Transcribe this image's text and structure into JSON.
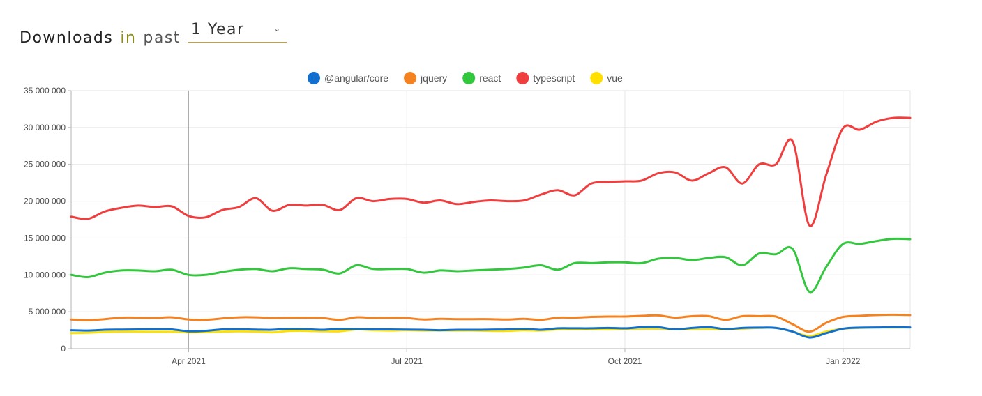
{
  "header": {
    "title": "Downloads",
    "in": "in",
    "past": "past",
    "period": "1 Year"
  },
  "chart_data": {
    "type": "line",
    "y_ticks": [
      "0",
      "5 000 000",
      "10 000 000",
      "15 000 000",
      "20 000 000",
      "25 000 000",
      "30 000 000",
      "35 000 000"
    ],
    "ylim": [
      0,
      35000000
    ],
    "x_tick_labels": [
      "Apr 2021",
      "Jul 2021",
      "Oct 2021",
      "Jan 2022"
    ],
    "x_tick_indices": [
      7,
      20,
      33,
      46
    ],
    "highlight_index": 7,
    "grid": true,
    "legend_position": "top-center",
    "series": [
      {
        "name": "@angular/core",
        "color": "#1170cf",
        "values": [
          2500000,
          2450000,
          2550000,
          2580000,
          2600000,
          2620000,
          2600000,
          2350000,
          2400000,
          2600000,
          2620000,
          2580000,
          2550000,
          2700000,
          2650000,
          2550000,
          2700000,
          2650000,
          2600000,
          2600000,
          2580000,
          2550000,
          2500000,
          2550000,
          2550000,
          2580000,
          2600000,
          2700000,
          2550000,
          2750000,
          2750000,
          2750000,
          2800000,
          2750000,
          2900000,
          2900000,
          2600000,
          2800000,
          2900000,
          2650000,
          2800000,
          2850000,
          2800000,
          2300000,
          1500000,
          2100000,
          2700000,
          2850000,
          2880000,
          2900000,
          2880000
        ]
      },
      {
        "name": "jquery",
        "color": "#f58220",
        "values": [
          3950000,
          3850000,
          4000000,
          4200000,
          4200000,
          4150000,
          4250000,
          3950000,
          3900000,
          4100000,
          4250000,
          4250000,
          4150000,
          4200000,
          4200000,
          4150000,
          3900000,
          4250000,
          4150000,
          4200000,
          4150000,
          3950000,
          4050000,
          4000000,
          4000000,
          4000000,
          3950000,
          4050000,
          3900000,
          4200000,
          4200000,
          4300000,
          4350000,
          4350000,
          4450000,
          4500000,
          4200000,
          4400000,
          4400000,
          3900000,
          4400000,
          4400000,
          4350000,
          3300000,
          2300000,
          3500000,
          4300000,
          4450000,
          4550000,
          4600000,
          4550000
        ]
      },
      {
        "name": "react",
        "color": "#33c73d",
        "values": [
          10000000,
          9700000,
          10300000,
          10600000,
          10600000,
          10500000,
          10700000,
          10000000,
          10000000,
          10400000,
          10700000,
          10800000,
          10500000,
          10900000,
          10800000,
          10700000,
          10200000,
          11300000,
          10800000,
          10800000,
          10800000,
          10300000,
          10600000,
          10500000,
          10600000,
          10700000,
          10800000,
          11000000,
          11300000,
          10700000,
          11600000,
          11600000,
          11700000,
          11700000,
          11600000,
          12200000,
          12300000,
          12000000,
          12300000,
          12400000,
          11300000,
          12900000,
          12800000,
          13500000,
          7700000,
          11100000,
          14200000,
          14200000,
          14600000,
          14900000,
          14850000
        ]
      },
      {
        "name": "typescript",
        "color": "#f03e3e",
        "values": [
          17900000,
          17600000,
          18600000,
          19100000,
          19400000,
          19200000,
          19300000,
          18000000,
          17800000,
          18800000,
          19200000,
          20400000,
          18700000,
          19500000,
          19400000,
          19500000,
          18800000,
          20400000,
          20000000,
          20300000,
          20300000,
          19800000,
          20100000,
          19600000,
          19900000,
          20100000,
          20000000,
          20100000,
          20900000,
          21500000,
          20800000,
          22400000,
          22600000,
          22700000,
          22800000,
          23800000,
          23900000,
          22800000,
          23800000,
          24600000,
          22400000,
          25000000,
          25000000,
          28100000,
          16700000,
          23600000,
          29900000,
          29700000,
          30800000,
          31300000,
          31300000
        ]
      },
      {
        "name": "vue",
        "color": "#ffe000",
        "values": [
          2100000,
          2150000,
          2250000,
          2300000,
          2300000,
          2280000,
          2280000,
          2200000,
          2220000,
          2300000,
          2350000,
          2300000,
          2200000,
          2400000,
          2400000,
          2350000,
          2350000,
          2600000,
          2500000,
          2450000,
          2500000,
          2450000,
          2450000,
          2450000,
          2450000,
          2400000,
          2400000,
          2500000,
          2450000,
          2600000,
          2600000,
          2600000,
          2600000,
          2650000,
          2700000,
          2700000,
          2600000,
          2650000,
          2650000,
          2600000,
          2700000,
          2800000,
          2800000,
          2300000,
          1700000,
          2300000,
          2700000,
          2800000,
          2850000,
          2850000,
          2850000
        ]
      }
    ]
  }
}
